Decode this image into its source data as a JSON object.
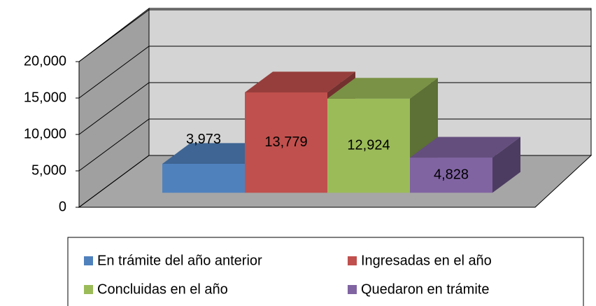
{
  "chart_data": {
    "type": "bar3d",
    "series": [
      {
        "name": "En trámite del año anterior",
        "color": "#4f81bd",
        "values": [
          3973
        ],
        "value_labels": [
          "3,973"
        ]
      },
      {
        "name": "Ingresadas en el año",
        "color": "#c0504d",
        "values": [
          13779
        ],
        "value_labels": [
          "13,779"
        ]
      },
      {
        "name": "Concluidas en el año",
        "color": "#9bbb59",
        "values": [
          12924
        ],
        "value_labels": [
          "12,924"
        ]
      },
      {
        "name": "Quedaron en trámite",
        "color": "#8064a2",
        "values": [
          4828
        ],
        "value_labels": [
          "4,828"
        ]
      }
    ],
    "ylim": [
      0,
      20000
    ],
    "yticks": [
      0,
      {
        "value": 5000,
        "label": "5,000"
      },
      {
        "value": 10000,
        "label": "10,000"
      },
      {
        "value": 15000,
        "label": "15,000"
      },
      {
        "value": 20000,
        "label": "20,000"
      }
    ],
    "grid": true
  }
}
